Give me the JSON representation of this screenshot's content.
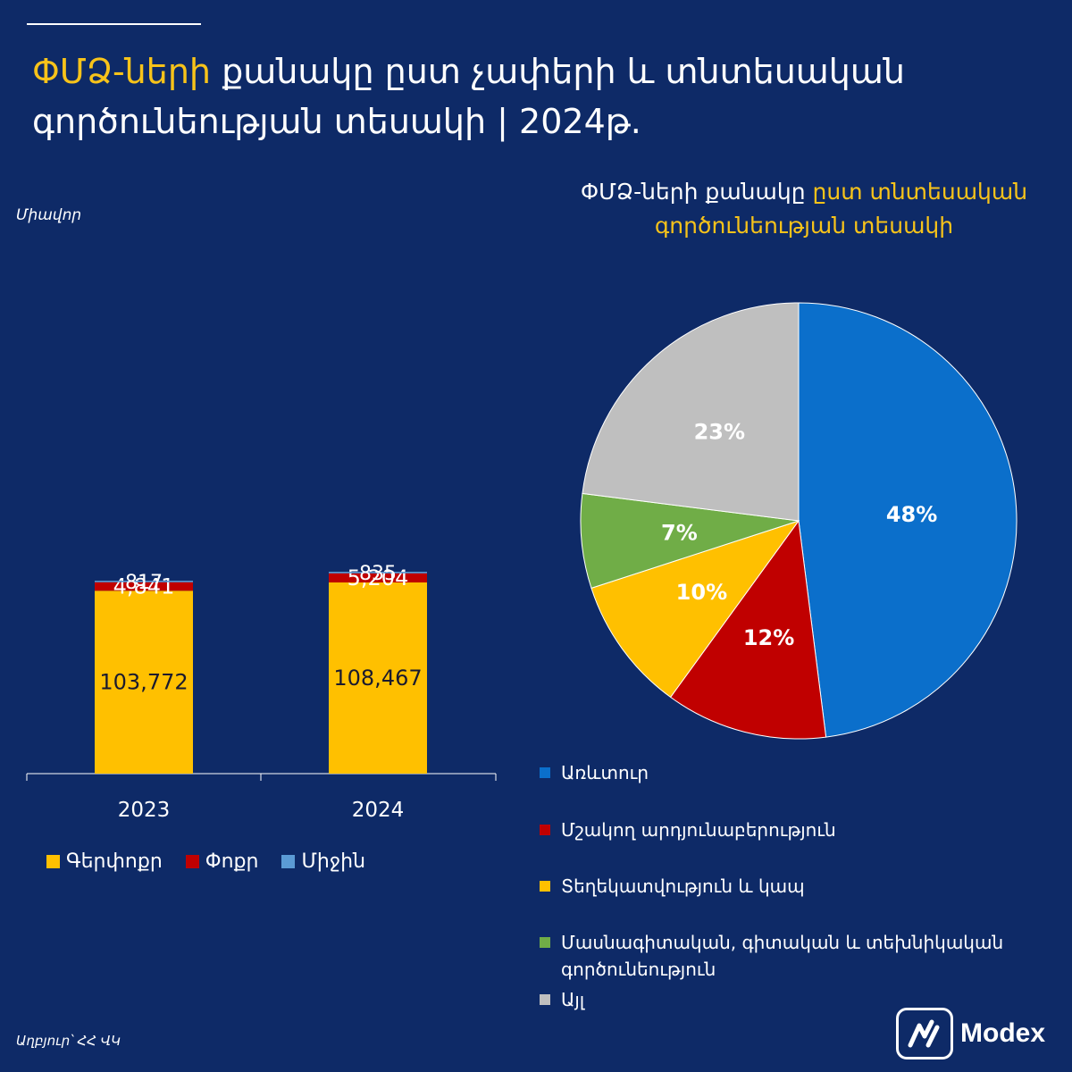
{
  "title": {
    "highlight": "ՓՄՁ-ների",
    "rest": "քանակը ըստ չափերի և տնտեսական գործունեության տեսակի | 2024թ."
  },
  "unit_label": "Միավոր",
  "pie_title": {
    "plain": "ՓՄՁ-ների քանակը",
    "highlight": "ըստ տնտեսական գործունեության տեսակի"
  },
  "source": "Աղբյուր՝ ՀՀ ՎԿ",
  "logo": {
    "text": "Modex"
  },
  "chart_data": [
    {
      "type": "bar",
      "stacked": true,
      "categories": [
        "2023",
        "2024"
      ],
      "series": [
        {
          "name": "Գերփոքր",
          "values": [
            103772,
            108467
          ],
          "color": "#ffc000"
        },
        {
          "name": "Փոքր",
          "values": [
            4841,
            5204
          ],
          "color": "#c00000"
        },
        {
          "name": "Միջին",
          "values": [
            817,
            835
          ],
          "color": "#5b9bd5"
        }
      ],
      "data_labels": [
        [
          "103,772",
          "108,467"
        ],
        [
          "4,841",
          "5,204"
        ],
        [
          "817",
          "835"
        ]
      ],
      "legend": "bottom",
      "grid": false
    },
    {
      "type": "pie",
      "title": "ՓՄՁ-ների քանակը ըստ տնտեսական գործունեության տեսակի",
      "slices": [
        {
          "name": "Առևտուր",
          "value": 48,
          "label": "48%",
          "color": "#0b6fcb"
        },
        {
          "name": "Մշակող արդյունաբերություն",
          "value": 12,
          "label": "12%",
          "color": "#c00000"
        },
        {
          "name": "Տեղեկատվություն և կապ",
          "value": 10,
          "label": "10%",
          "color": "#ffc000"
        },
        {
          "name": "Մասնագիտական, գիտական և տեխնիկական գործունեություն",
          "value": 7,
          "label": "7%",
          "color": "#70ad47"
        },
        {
          "name": "Այլ",
          "value": 23,
          "label": "23%",
          "color": "#bfbfbf"
        }
      ],
      "legend": "bottom"
    }
  ]
}
